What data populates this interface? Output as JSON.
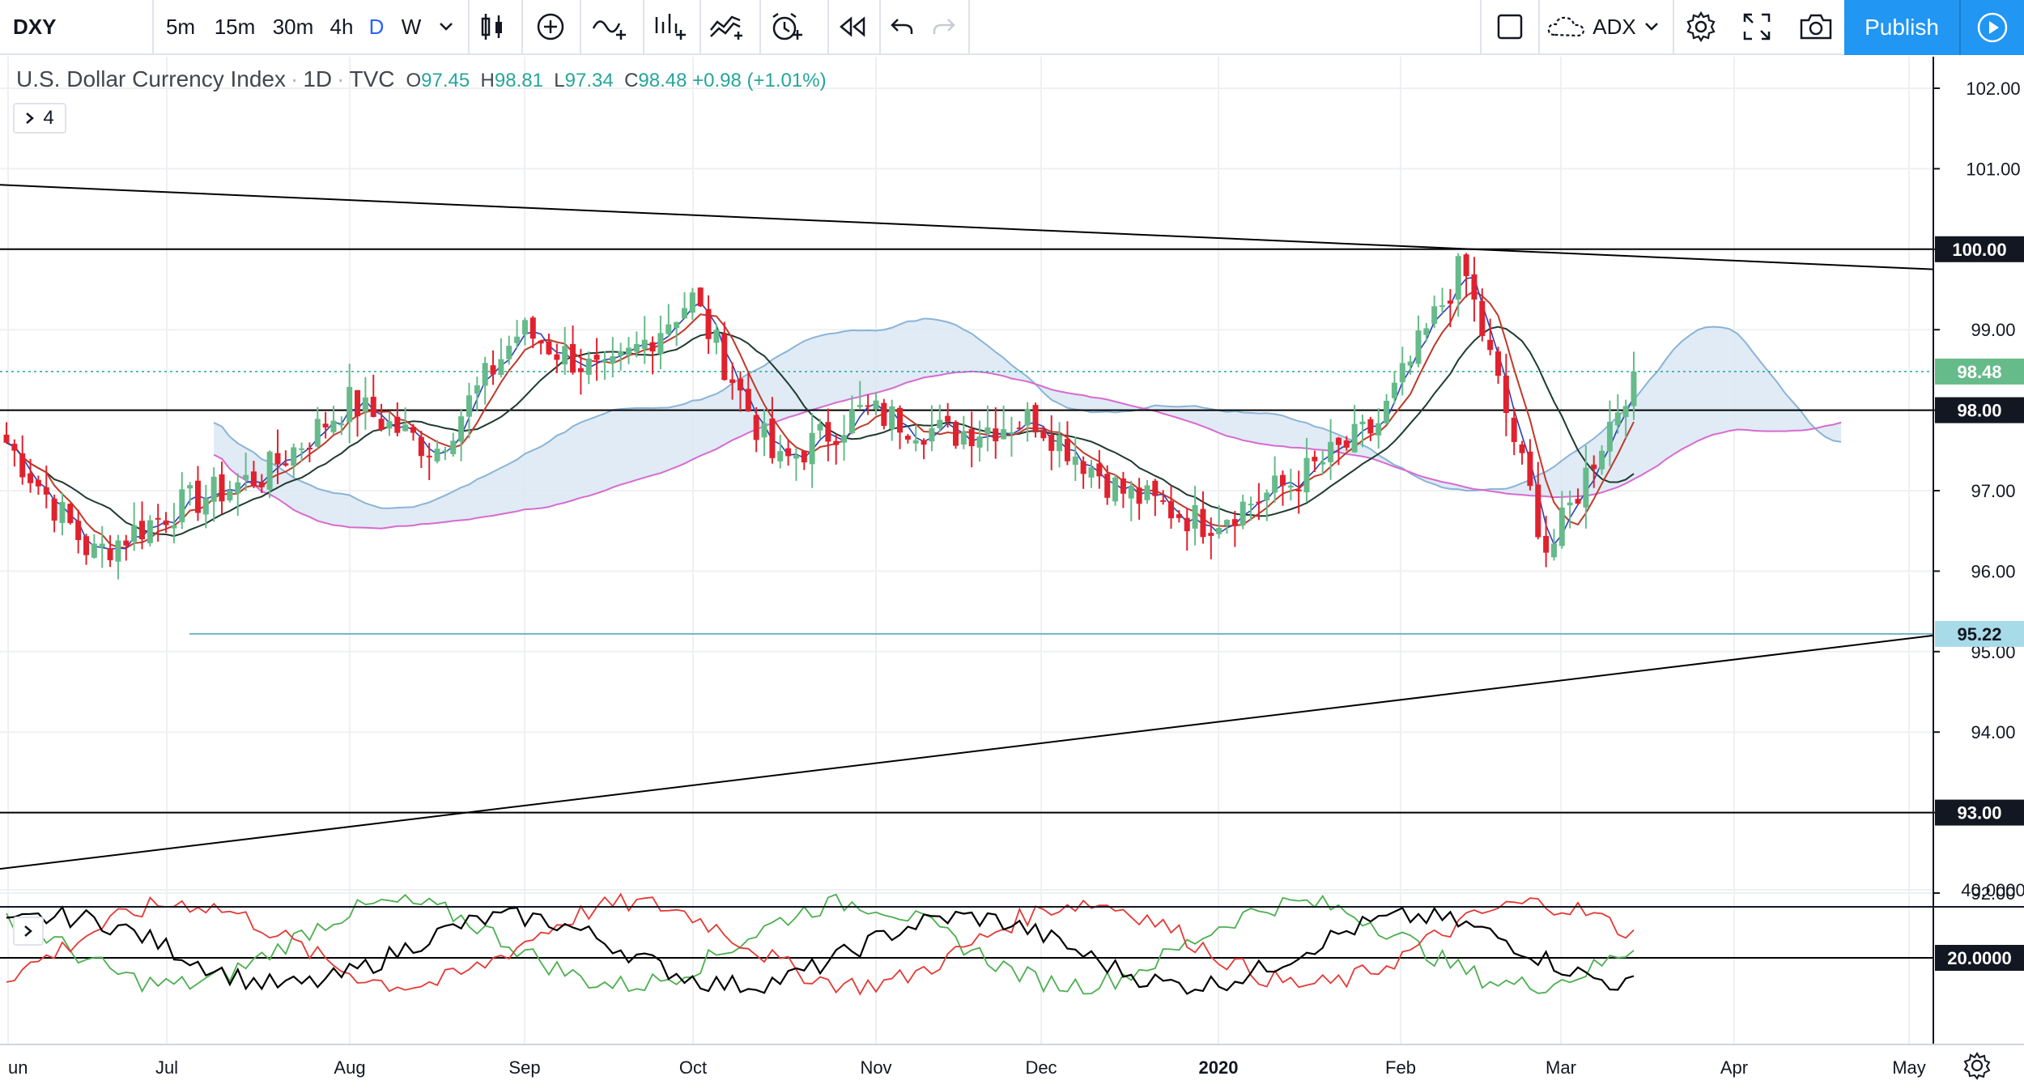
{
  "toolbar": {
    "symbol": "DXY",
    "intervals": [
      "5m",
      "15m",
      "30m",
      "4h",
      "D",
      "W"
    ],
    "active_interval": "D",
    "indicator_name": "ADX",
    "publish_label": "Publish"
  },
  "legend": {
    "name": "U.S. Dollar Currency Index",
    "interval": "1D",
    "exchange": "TVC",
    "o_label": "O",
    "o": "97.45",
    "h_label": "H",
    "h": "98.81",
    "l_label": "L",
    "l": "97.34",
    "c_label": "C",
    "c": "98.48",
    "change": "+0.98 (+1.01%)",
    "indicators_count": "4"
  },
  "colors": {
    "up": "#26a69a",
    "up_fill": "#66bb8a",
    "down": "#e0222e",
    "accent": "#2196f3",
    "cloud_up": "#dbe8f3",
    "cloud_down": "#fce4ef"
  },
  "chart_data": [
    {
      "type": "line",
      "title": "U.S. Dollar Currency Index",
      "y_ticks": [
        "102.00",
        "101.00",
        "100.00",
        "99.00",
        "98.00",
        "97.00",
        "96.00",
        "95.00",
        "94.00",
        "93.00",
        "92.00"
      ],
      "x_ticks": [
        "un",
        "Jul",
        "Aug",
        "Sep",
        "Oct",
        "Nov",
        "Dec",
        "2020",
        "Feb",
        "Mar",
        "Apr",
        "May"
      ],
      "ylim": [
        91.9,
        102.4
      ],
      "price_labels": [
        {
          "value": 100.0,
          "text": "100.00",
          "style": "black"
        },
        {
          "value": 98.48,
          "text": "98.48",
          "style": "green"
        },
        {
          "value": 98.0,
          "text": "98.00",
          "style": "black"
        },
        {
          "value": 95.22,
          "text": "95.22",
          "style": "teal"
        },
        {
          "value": 93.0,
          "text": "93.00",
          "style": "black"
        }
      ],
      "horizontal_lines": [
        100.0,
        98.0,
        93.0
      ],
      "series": [
        {
          "name": "DXY",
          "x": [
            "Jun",
            "Jun",
            "Jul",
            "Jul",
            "Aug",
            "Aug",
            "Sep",
            "Sep",
            "Oct",
            "Oct",
            "Nov",
            "Nov",
            "Dec",
            "Dec",
            "2020",
            "2020",
            "Feb",
            "Feb",
            "Mar",
            "Mar"
          ],
          "values": [
            97.6,
            96.2,
            96.8,
            97.2,
            98.1,
            97.5,
            99.0,
            98.4,
            99.4,
            97.3,
            98.0,
            97.7,
            97.9,
            97.0,
            96.6,
            97.1,
            97.8,
            99.8,
            96.2,
            98.48
          ]
        }
      ]
    },
    {
      "type": "line",
      "title": "ADX",
      "y_ticks": [
        "40.0000",
        "20.0000"
      ],
      "ylim": [
        0,
        50
      ],
      "price_labels": [
        {
          "value": 20,
          "text": "20.0000",
          "style": "black"
        }
      ]
    }
  ]
}
